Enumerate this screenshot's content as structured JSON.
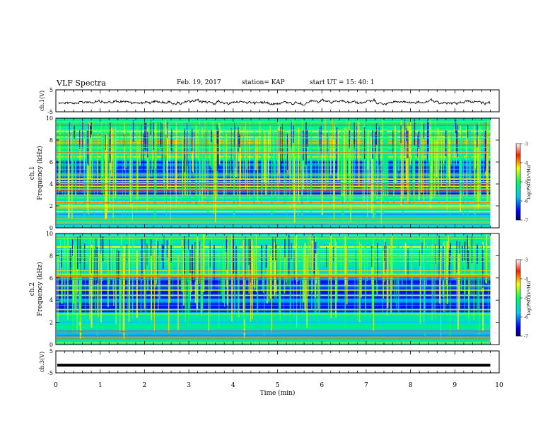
{
  "header": {
    "title": "VLF Spectra",
    "date": "Feb. 19, 2017",
    "station": "station= KAP",
    "start": "start  UT =  15: 40: 1"
  },
  "chart_data": [
    {
      "type": "line",
      "panel": "ch1-waveform",
      "ylabel": "ch.1(V)",
      "ylim": [
        -5,
        5
      ],
      "yticks": [
        "5",
        "-5"
      ],
      "xlim": [
        0,
        10
      ],
      "description_of_trace": "noisy voltage trace near 0 V spanning 0 to ~9.8 min"
    },
    {
      "type": "heatmap",
      "panel": "ch1-spectrogram",
      "ylabel_line1": "ch.1",
      "ylabel_line2": "Frequency (kHz)",
      "ylim": [
        0,
        10
      ],
      "yticks": [
        "0",
        "2",
        "4",
        "6",
        "8",
        "10"
      ],
      "xlim": [
        0,
        10
      ],
      "colorbar": {
        "label": "log(PSD)(V²/Hz)",
        "range": [
          -7,
          -3
        ],
        "ticks": [
          "-3",
          "-4",
          "-5",
          "-6",
          "-7"
        ]
      }
    },
    {
      "type": "heatmap",
      "panel": "ch2-spectrogram",
      "ylabel_line1": "ch.2",
      "ylabel_line2": "Frequency (kHz)",
      "ylim": [
        0,
        10
      ],
      "yticks": [
        "0",
        "2",
        "4",
        "6",
        "8",
        "10"
      ],
      "xlim": [
        0,
        10
      ],
      "colorbar": {
        "label": "log(PSD)(V²/Hz)",
        "range": [
          -7,
          -3
        ],
        "ticks": [
          "-3",
          "-4",
          "-5",
          "-6",
          "-7"
        ]
      }
    },
    {
      "type": "line",
      "panel": "ch3-waveform",
      "ylabel": "ch.3(V)",
      "ylim": [
        -5,
        5
      ],
      "yticks": [
        "5",
        "-5"
      ],
      "xlim": [
        0,
        10
      ],
      "xlabel": "Time  (min)",
      "xticks": [
        "0",
        "1",
        "2",
        "3",
        "4",
        "5",
        "6",
        "7",
        "8",
        "9",
        "10"
      ],
      "constant_value": -1.5
    }
  ]
}
